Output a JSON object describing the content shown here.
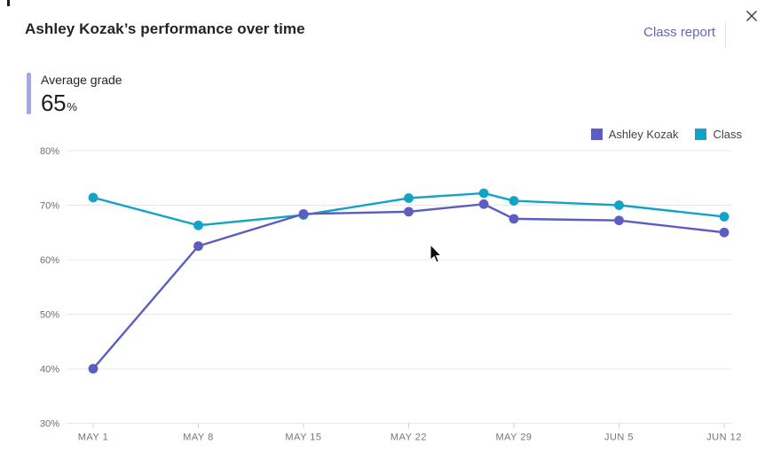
{
  "header": {
    "title": "Ashley Kozak’s performance over time",
    "action_label": "Class report",
    "close_icon": "close-x"
  },
  "stat": {
    "label": "Average grade",
    "value": "65",
    "unit": "%"
  },
  "colors": {
    "student_series": "#5b5ec0",
    "class_series": "#12a3c6",
    "stat_accent": "#a5a8e0",
    "link_purple": "#6467b6",
    "gridline": "#e8e8e8",
    "axis_text": "#707070"
  },
  "chart_data": {
    "type": "line",
    "title": "Ashley Kozak’s performance over time",
    "xlabel": "",
    "ylabel": "",
    "ylim": [
      30,
      80
    ],
    "grid": true,
    "legend_position": "top-right",
    "y_ticks": [
      80,
      70,
      60,
      50,
      40,
      30
    ],
    "y_tick_labels": [
      "80%",
      "70%",
      "60%",
      "50%",
      "40%",
      "30%"
    ],
    "x_ticks": [
      {
        "day": 0,
        "label": "MAY 1"
      },
      {
        "day": 7,
        "label": "MAY 8"
      },
      {
        "day": 14,
        "label": "MAY 15"
      },
      {
        "day": 21,
        "label": "MAY 22"
      },
      {
        "day": 28,
        "label": "MAY 29"
      },
      {
        "day": 35,
        "label": "JUN 5"
      },
      {
        "day": 42,
        "label": "JUN 12"
      }
    ],
    "point_dates": [
      "May 1",
      "May 8",
      "May 15",
      "May 22",
      "May 27",
      "May 29",
      "Jun 5",
      "Jun 12"
    ],
    "point_days": [
      0,
      7,
      14,
      21,
      26,
      28,
      35,
      42
    ],
    "series": [
      {
        "name": "Ashley Kozak",
        "color": "#5b5ec0",
        "values": [
          40,
          62.5,
          68.4,
          68.8,
          70.2,
          67.5,
          67.2,
          65
        ]
      },
      {
        "name": "Class",
        "color": "#12a3c6",
        "values": [
          71.4,
          66.3,
          68.2,
          71.3,
          72.2,
          70.8,
          70,
          67.9
        ]
      }
    ]
  }
}
